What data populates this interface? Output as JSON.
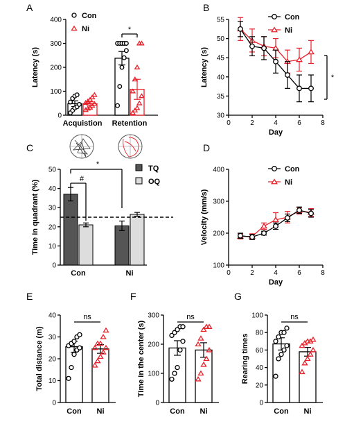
{
  "colors": {
    "con": "#000000",
    "ni": "#e8202a",
    "tq": "#555555",
    "oq": "#dddddd"
  },
  "chart_data": [
    {
      "panel": "A",
      "type": "bar",
      "ylabel": "Latency (s)",
      "ylim": [
        0,
        400
      ],
      "yticks": [
        0,
        100,
        200,
        300,
        400
      ],
      "categories": [
        "Acquistion",
        "Retention"
      ],
      "series": [
        {
          "name": "Con",
          "values": [
            48,
            238
          ],
          "sem": [
            12,
            28
          ],
          "points": [
            [
              10,
              20,
              30,
              35,
              45,
              55,
              70,
              80,
              85
            ],
            [
              40,
              120,
              200,
              240,
              270,
              300,
              300,
              300,
              300,
              300
            ]
          ]
        },
        {
          "name": "Ni",
          "values": [
            48,
            108
          ],
          "sem": [
            8,
            42
          ],
          "points": [
            [
              22,
              28,
              32,
              40,
              48,
              52,
              58,
              65,
              75,
              85
            ],
            [
              10,
              20,
              30,
              50,
              80,
              100,
              150,
              200,
              300,
              300
            ]
          ]
        }
      ],
      "annotations": [
        {
          "text": "*"
        }
      ]
    },
    {
      "panel": "B",
      "type": "line",
      "xlabel": "Day",
      "ylabel": "Latency (s)",
      "xlim": [
        0,
        8
      ],
      "ylim": [
        30,
        55
      ],
      "xticks": [
        0,
        2,
        4,
        6,
        8
      ],
      "yticks": [
        30,
        35,
        40,
        45,
        50,
        55
      ],
      "x": [
        1,
        2,
        3,
        4,
        5,
        6,
        7
      ],
      "series": [
        {
          "name": "Con",
          "values": [
            52.5,
            48,
            47.5,
            44,
            40.5,
            37,
            37
          ],
          "sem": [
            2,
            2.5,
            3,
            3,
            3.5,
            3.5,
            3.5
          ]
        },
        {
          "name": "Ni",
          "values": [
            52.5,
            49.5,
            48,
            47.5,
            44,
            44.5,
            46.5
          ],
          "sem": [
            3,
            3,
            2.5,
            2.5,
            3,
            3,
            3
          ]
        }
      ],
      "annotations": [
        {
          "text": "*"
        }
      ]
    },
    {
      "panel": "C",
      "type": "bar",
      "ylabel": "Time in quadrant (%)",
      "ylim": [
        0,
        50
      ],
      "yticks": [
        0,
        10,
        20,
        30,
        40,
        50
      ],
      "categories": [
        "Con",
        "Ni"
      ],
      "chance_line": 25,
      "series": [
        {
          "name": "TQ",
          "values": [
            37,
            20.5
          ],
          "sem": [
            3.5,
            2.5
          ]
        },
        {
          "name": "OQ",
          "values": [
            21,
            26.5
          ],
          "sem": [
            1,
            1
          ]
        }
      ],
      "annotations": [
        {
          "text": "#"
        },
        {
          "text": "*"
        }
      ]
    },
    {
      "panel": "D",
      "type": "line",
      "xlabel": "Day",
      "ylabel": "Velocity (mm/s)",
      "xlim": [
        0,
        8
      ],
      "ylim": [
        100,
        400
      ],
      "xticks": [
        0,
        2,
        4,
        6,
        8
      ],
      "yticks": [
        100,
        200,
        300,
        400
      ],
      "x": [
        1,
        2,
        3,
        4,
        5,
        6,
        7
      ],
      "series": [
        {
          "name": "Con",
          "values": [
            192,
            188,
            200,
            222,
            248,
            272,
            262
          ],
          "sem": [
            8,
            8,
            6,
            10,
            12,
            10,
            12
          ]
        },
        {
          "name": "Ni",
          "values": [
            190,
            190,
            222,
            242,
            250,
            270,
            265
          ],
          "sem": [
            8,
            8,
            10,
            22,
            18,
            10,
            12
          ]
        }
      ]
    },
    {
      "panel": "E",
      "type": "bar",
      "ylabel": "Total distance (m)",
      "ylim": [
        0,
        40
      ],
      "yticks": [
        0,
        10,
        20,
        30,
        40
      ],
      "categories": [
        "Con",
        "Ni"
      ],
      "series": [
        {
          "name": "",
          "values": [
            25.5,
            24.5
          ],
          "sem": [
            2.5,
            2
          ]
        }
      ],
      "points": [
        [
          11,
          16,
          22,
          24,
          25,
          26,
          27,
          28,
          30,
          31
        ],
        [
          17,
          19,
          21,
          23,
          25,
          25,
          27,
          27,
          30,
          33
        ]
      ],
      "annotations": [
        {
          "text": "ns"
        }
      ]
    },
    {
      "panel": "F",
      "type": "bar",
      "ylabel": "Time in the center (s)",
      "ylim": [
        0,
        300
      ],
      "yticks": [
        0,
        100,
        200,
        300
      ],
      "categories": [
        "Con",
        "Ni"
      ],
      "series": [
        {
          "name": "",
          "values": [
            187,
            180
          ],
          "sem": [
            25,
            25
          ]
        }
      ],
      "points": [
        [
          80,
          100,
          120,
          180,
          210,
          230,
          240,
          250,
          260,
          260
        ],
        [
          80,
          100,
          130,
          150,
          180,
          200,
          220,
          250,
          260,
          260
        ]
      ],
      "annotations": [
        {
          "text": "ns"
        }
      ]
    },
    {
      "panel": "G",
      "type": "bar",
      "ylabel": "Rearing times",
      "ylim": [
        0,
        100
      ],
      "yticks": [
        0,
        20,
        40,
        60,
        80,
        100
      ],
      "categories": [
        "Con",
        "Ni"
      ],
      "series": [
        {
          "name": "",
          "values": [
            67,
            58
          ],
          "sem": [
            7,
            5
          ]
        }
      ],
      "points": [
        [
          30,
          50,
          55,
          60,
          65,
          70,
          75,
          80,
          80,
          85
        ],
        [
          35,
          45,
          50,
          55,
          60,
          65,
          68,
          70,
          70,
          72
        ]
      ],
      "annotations": [
        {
          "text": "ns"
        }
      ]
    }
  ]
}
